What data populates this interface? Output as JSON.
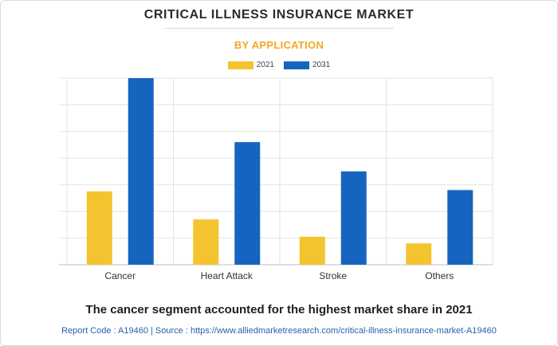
{
  "title": "CRITICAL ILLNESS INSURANCE MARKET",
  "subtitle": "BY APPLICATION",
  "colors": {
    "series_2021": "#f4c430",
    "series_2031": "#1565c0",
    "subtitle": "#f5a623",
    "grid": "#e3e3e3",
    "axis": "#bdbdbd",
    "source_text": "#2a5fa8"
  },
  "chart_data": {
    "type": "bar",
    "title": "CRITICAL ILLNESS INSURANCE MARKET",
    "subtitle": "BY APPLICATION",
    "categories": [
      "Cancer",
      "Heart Attack",
      "Stroke",
      "Others"
    ],
    "series": [
      {
        "name": "2021",
        "values": [
          2.75,
          1.7,
          1.05,
          0.8
        ]
      },
      {
        "name": "2031",
        "values": [
          7.0,
          4.6,
          3.5,
          2.8
        ]
      }
    ],
    "ylim": [
      0,
      7
    ],
    "gridlines": 7,
    "ytick_labels_visible": false,
    "legend_position": "top-center",
    "grid": true
  },
  "footer": {
    "headline": "The cancer segment accounted for the highest market share in 2021",
    "source": "Report Code : A19460  |  Source : https://www.alliedmarketresearch.com/critical-illness-insurance-market-A19460"
  }
}
